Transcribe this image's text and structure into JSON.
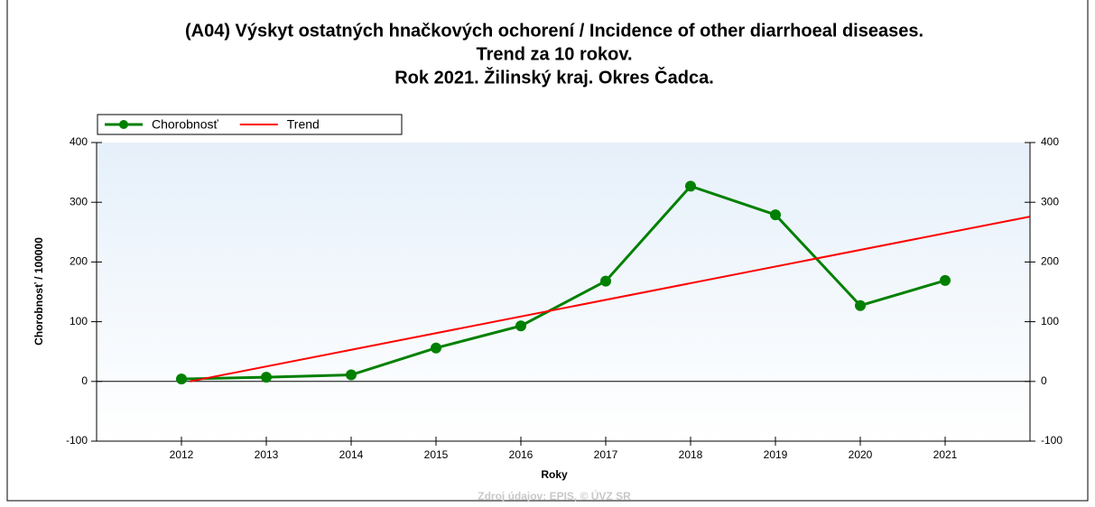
{
  "chart_data": {
    "type": "line",
    "title": [
      "(A04) Výskyt ostatných hnačkových ochorení / Incidence of other diarrhoeal diseases.",
      "Trend za 10 rokov.",
      "Rok 2021. Žilinský kraj. Okres Čadca."
    ],
    "x_label": "Roky",
    "y_label": "Chorobnosť / 100000",
    "source": "Zdroj údajov: EPIS, © ÚVZ SR",
    "x": [
      2012,
      2013,
      2014,
      2015,
      2016,
      2017,
      2018,
      2019,
      2020,
      2021
    ],
    "series": [
      {
        "name": "Chorobnosť",
        "color": "#008000",
        "marker": true,
        "values": [
          4,
          7,
          11,
          56,
          93,
          168,
          327,
          279,
          127,
          169
        ]
      },
      {
        "name": "Trend",
        "color": "#ff0000",
        "marker": false,
        "x": [
          2012.1,
          2022
        ],
        "values": [
          0,
          276
        ]
      }
    ],
    "xlim": [
      2011,
      2022
    ],
    "xticks": [
      2012,
      2013,
      2014,
      2015,
      2016,
      2017,
      2018,
      2019,
      2020,
      2021
    ],
    "ylim": [
      -100,
      400
    ],
    "yticks": [
      -100,
      0,
      100,
      200,
      300,
      400
    ],
    "y2lim": [
      -100,
      400
    ],
    "y2ticks": [
      -100,
      0,
      100,
      200,
      300,
      400
    ],
    "legend": "top-left"
  }
}
